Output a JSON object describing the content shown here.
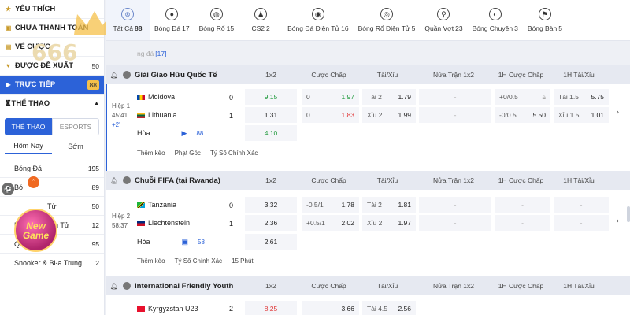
{
  "sidebar": {
    "items": [
      {
        "label": "YÊU THÍCH",
        "icon": "star-icon",
        "count": ""
      },
      {
        "label": "CHƯA THANH TOÁN",
        "icon": "wallet-icon",
        "count": ""
      },
      {
        "label": "VÉ CƯỢC",
        "icon": "ticket-icon",
        "count": ""
      },
      {
        "label": "ĐƯỢC ĐỀ XUẤT",
        "icon": "heart-icon",
        "count": "50"
      },
      {
        "label": "TRỰC TIẾP",
        "icon": "live-icon",
        "count": "88"
      },
      {
        "label": "THỂ THAO",
        "icon": "trophy-icon",
        "count": ""
      }
    ],
    "segment": {
      "on": "THỂ THAO",
      "off": "ESPORTS"
    },
    "subtabs": {
      "today": "Hôm Nay",
      "early": "Sớm"
    },
    "sports": [
      {
        "label": "Bóng Đá",
        "count": "195"
      },
      {
        "label": "Bó",
        "count": "89"
      },
      {
        "label": "Tử",
        "count": "50"
      },
      {
        "label": "Bóng Rổ Điện Tử",
        "count": "12"
      },
      {
        "label": "Quần Vợt",
        "count": "95"
      },
      {
        "label": "Snooker & Bi-a Trung",
        "count": "2"
      }
    ]
  },
  "brand": {
    "logo_text": "666",
    "promo_line1": "New",
    "promo_line2": "Game"
  },
  "topbar": {
    "tabs": [
      {
        "label": "Tất Cả",
        "count": "88",
        "icon": "all-icon"
      },
      {
        "label": "Bóng Đá",
        "count": "17",
        "icon": "soccer-icon"
      },
      {
        "label": "Bóng Rổ",
        "count": "15",
        "icon": "basketball-icon"
      },
      {
        "label": "CS2",
        "count": "2",
        "icon": "cs2-icon"
      },
      {
        "label": "Bóng Đá Điện Tử",
        "count": "16",
        "icon": "esoccer-icon"
      },
      {
        "label": "Bóng Rổ Điện Tử",
        "count": "5",
        "icon": "ebasketball-icon"
      },
      {
        "label": "Quần Vợt",
        "count": "23",
        "icon": "tennis-icon"
      },
      {
        "label": "Bóng Chuyền",
        "count": "3",
        "icon": "volleyball-icon"
      },
      {
        "label": "Bóng Bàn",
        "count": "5",
        "icon": "table-tennis-icon"
      }
    ]
  },
  "filter": {
    "label": "ng đá",
    "count": "[17]"
  },
  "columns": {
    "c1": "1x2",
    "c2": "Cược Chấp",
    "c3": "Tài/Xỉu",
    "c4": "Nửa Trận 1x2",
    "c5": "1H Cược Chấp",
    "c6": "1H Tài/Xỉu"
  },
  "leagues": [
    {
      "name": "Giải Giao Hữu Quốc Tế",
      "match": {
        "period": "Hiệp 1",
        "clock": "45:41",
        "extra": "+2'",
        "home": "Moldova",
        "away": "Lithuania",
        "draw": "Hòa",
        "home_score": "0",
        "away_score": "1",
        "odds": {
          "home_1x2": "9.15",
          "away_1x2": "1.31",
          "draw_1x2": "4.10",
          "home_hcp": "0",
          "home_hcp_odd": "1.97",
          "away_hcp": "0",
          "away_hcp_odd": "1.83",
          "ou_over": "Tài 2",
          "ou_over_odd": "1.79",
          "ou_under": "Xỉu 2",
          "ou_under_odd": "1.99",
          "half1x2_h": "-",
          "half1x2_a": "-",
          "h1_hcp_h": "+0/0.5",
          "h1_hcp_a": "-0/0.5",
          "h1_hcp_a_odd": "5.50",
          "h1_ou_over": "Tài 1.5",
          "h1_ou_over_odd": "5.75",
          "h1_ou_under": "Xỉu 1.5",
          "h1_ou_under_odd": "1.01"
        },
        "markets": "88",
        "links": [
          "Thêm kèo",
          "Phạt Góc",
          "Tỷ Số Chính Xác"
        ]
      }
    },
    {
      "name": "Chuỗi FIFA (tại Rwanda)",
      "match": {
        "period": "Hiệp 2",
        "clock": "58:37",
        "home": "Tanzania",
        "away": "Liechtenstein",
        "draw": "Hòa",
        "home_score": "0",
        "away_score": "1",
        "odds": {
          "home_1x2": "3.32",
          "away_1x2": "2.36",
          "draw_1x2": "2.61",
          "home_hcp": "-0.5/1",
          "home_hcp_odd": "1.78",
          "away_hcp": "+0.5/1",
          "away_hcp_odd": "2.02",
          "ou_over": "Tài 2",
          "ou_over_odd": "1.81",
          "ou_under": "Xỉu 2",
          "ou_under_odd": "1.97"
        },
        "markets": "58",
        "links": [
          "Thêm kèo",
          "Tỷ Số Chính Xác",
          "15 Phút"
        ]
      }
    },
    {
      "name": "International Friendly Youth",
      "match": {
        "home": "Kyrgyzstan U23",
        "home_score": "2",
        "odds": {
          "home_1x2": "8.25",
          "home_hcp_odd": "3.66",
          "ou_over": "Tài 4.5",
          "ou_over_odd": "2.56"
        }
      }
    }
  ],
  "colors": {
    "accent": "#2c62d8",
    "brand_gold": "#f5c04a",
    "up_green": "#1f9a3c",
    "down_red": "#e03434"
  }
}
